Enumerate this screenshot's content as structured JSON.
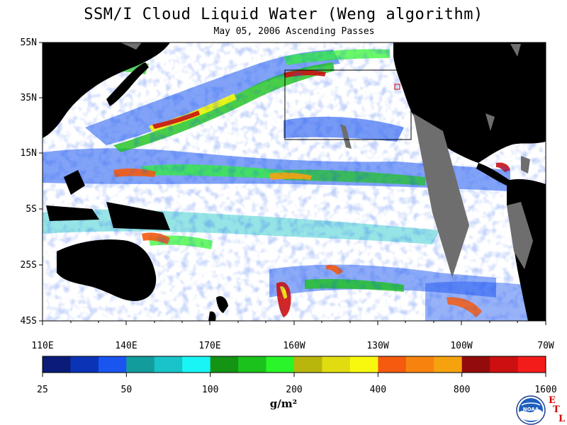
{
  "title": "SSM/I Cloud Liquid Water (Weng algorithm)",
  "subtitle": "May 05, 2006  Ascending Passes",
  "lat_labels": [
    "55N",
    "35N",
    "15N",
    "5S",
    "25S",
    "45S"
  ],
  "lon_labels": [
    "110E",
    "140E",
    "170E",
    "160W",
    "130W",
    "100W",
    "70W"
  ],
  "colorbar": {
    "colors": [
      "#0a1b7a",
      "#0b33b5",
      "#1a55f0",
      "#129c9c",
      "#18c4c8",
      "#19f5f5",
      "#139413",
      "#1cc21c",
      "#29f529",
      "#b8b50c",
      "#e0dc0f",
      "#f8f80f",
      "#f55a0f",
      "#f7830f",
      "#f6a20f",
      "#930b0b",
      "#cc0f0f",
      "#f41b1b"
    ],
    "tick_labels": [
      "25",
      "50",
      "100",
      "200",
      "400",
      "800",
      "1600"
    ]
  },
  "units": "g/m²",
  "logo": {
    "text": "NOAA"
  },
  "etl": {
    "e": "E",
    "t": "T",
    "l": "L"
  },
  "colors": {
    "land": "#000000",
    "no_data": "#6e6e6e",
    "ocean": "#ffffff"
  }
}
